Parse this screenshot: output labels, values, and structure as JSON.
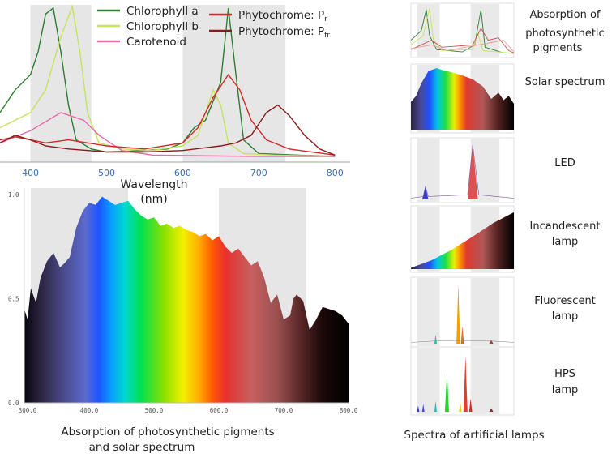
{
  "chart_data": [
    {
      "type": "line",
      "title": "",
      "xlabel": "Wavelength (nm)",
      "xlim": [
        360,
        820
      ],
      "x_ticks": [
        "400",
        "500",
        "600",
        "700",
        "800"
      ],
      "highlight_bands": [
        [
          400,
          480
        ],
        [
          600,
          735
        ]
      ],
      "legend": [
        {
          "name": "Chlorophyll a",
          "color": "#2e7d32"
        },
        {
          "name": "Chlorophyll b",
          "color": "#c6e35c"
        },
        {
          "name": "Carotenoid",
          "color": "#e86aa6"
        },
        {
          "name": "Phytochrome: P",
          "sub": "r",
          "color": "#d62828"
        },
        {
          "name": "Phytochrome: P",
          "sub": "fr",
          "color": "#8b1a1a"
        }
      ],
      "series": [
        {
          "name": "Chlorophyll a",
          "color": "#2e7d32",
          "points": [
            [
              360,
              0.3
            ],
            [
              380,
              0.45
            ],
            [
              400,
              0.55
            ],
            [
              410,
              0.7
            ],
            [
              420,
              0.95
            ],
            [
              430,
              0.99
            ],
            [
              440,
              0.7
            ],
            [
              450,
              0.35
            ],
            [
              460,
              0.12
            ],
            [
              480,
              0.06
            ],
            [
              500,
              0.04
            ],
            [
              550,
              0.05
            ],
            [
              580,
              0.06
            ],
            [
              600,
              0.1
            ],
            [
              615,
              0.2
            ],
            [
              630,
              0.25
            ],
            [
              650,
              0.5
            ],
            [
              660,
              0.99
            ],
            [
              670,
              0.55
            ],
            [
              680,
              0.12
            ],
            [
              700,
              0.03
            ],
            [
              750,
              0.02
            ],
            [
              800,
              0.01
            ]
          ]
        },
        {
          "name": "Chlorophyll b",
          "color": "#c6e35c",
          "points": [
            [
              360,
              0.2
            ],
            [
              380,
              0.25
            ],
            [
              400,
              0.3
            ],
            [
              420,
              0.45
            ],
            [
              440,
              0.8
            ],
            [
              455,
              1.0
            ],
            [
              465,
              0.7
            ],
            [
              475,
              0.3
            ],
            [
              490,
              0.1
            ],
            [
              520,
              0.06
            ],
            [
              560,
              0.05
            ],
            [
              600,
              0.08
            ],
            [
              620,
              0.15
            ],
            [
              640,
              0.45
            ],
            [
              650,
              0.35
            ],
            [
              660,
              0.1
            ],
            [
              680,
              0.03
            ],
            [
              720,
              0.02
            ],
            [
              800,
              0.01
            ]
          ]
        },
        {
          "name": "Carotenoid",
          "color": "#e86aa6",
          "points": [
            [
              360,
              0.1
            ],
            [
              400,
              0.18
            ],
            [
              440,
              0.3
            ],
            [
              470,
              0.25
            ],
            [
              490,
              0.15
            ],
            [
              520,
              0.05
            ],
            [
              560,
              0.02
            ],
            [
              700,
              0.01
            ],
            [
              800,
              0.01
            ]
          ]
        },
        {
          "name": "Phytochrome: Pr",
          "color": "#d62828",
          "points": [
            [
              360,
              0.12
            ],
            [
              380,
              0.14
            ],
            [
              400,
              0.12
            ],
            [
              420,
              0.1
            ],
            [
              450,
              0.12
            ],
            [
              500,
              0.08
            ],
            [
              550,
              0.06
            ],
            [
              600,
              0.1
            ],
            [
              620,
              0.2
            ],
            [
              640,
              0.4
            ],
            [
              660,
              0.55
            ],
            [
              675,
              0.45
            ],
            [
              690,
              0.25
            ],
            [
              710,
              0.12
            ],
            [
              740,
              0.06
            ],
            [
              800,
              0.02
            ]
          ]
        },
        {
          "name": "Phytochrome: Pfr",
          "color": "#8b1a1a",
          "points": [
            [
              360,
              0.1
            ],
            [
              380,
              0.15
            ],
            [
              400,
              0.12
            ],
            [
              420,
              0.08
            ],
            [
              450,
              0.06
            ],
            [
              500,
              0.04
            ],
            [
              550,
              0.04
            ],
            [
              600,
              0.05
            ],
            [
              650,
              0.08
            ],
            [
              670,
              0.1
            ],
            [
              690,
              0.15
            ],
            [
              710,
              0.3
            ],
            [
              725,
              0.35
            ],
            [
              740,
              0.28
            ],
            [
              760,
              0.15
            ],
            [
              780,
              0.06
            ],
            [
              800,
              0.02
            ]
          ]
        }
      ]
    },
    {
      "type": "area",
      "title": "",
      "xlim": [
        300,
        800
      ],
      "ylim": [
        0,
        1.0
      ],
      "x_ticks": [
        "300.0",
        "400.0",
        "500.0",
        "600.0",
        "700.0",
        "800.0"
      ],
      "y_ticks": [
        "1.0",
        "0.5",
        "0.0"
      ],
      "highlight_bands": [
        [
          310,
          460
        ],
        [
          600,
          735
        ]
      ],
      "points": [
        [
          300,
          0.45
        ],
        [
          305,
          0.4
        ],
        [
          310,
          0.55
        ],
        [
          318,
          0.48
        ],
        [
          325,
          0.6
        ],
        [
          335,
          0.68
        ],
        [
          345,
          0.72
        ],
        [
          355,
          0.65
        ],
        [
          362,
          0.67
        ],
        [
          370,
          0.7
        ],
        [
          380,
          0.84
        ],
        [
          390,
          0.92
        ],
        [
          400,
          0.96
        ],
        [
          410,
          0.95
        ],
        [
          420,
          0.99
        ],
        [
          430,
          0.97
        ],
        [
          440,
          0.95
        ],
        [
          450,
          0.96
        ],
        [
          460,
          0.97
        ],
        [
          470,
          0.93
        ],
        [
          480,
          0.9
        ],
        [
          490,
          0.88
        ],
        [
          500,
          0.89
        ],
        [
          510,
          0.85
        ],
        [
          520,
          0.86
        ],
        [
          530,
          0.84
        ],
        [
          540,
          0.85
        ],
        [
          550,
          0.83
        ],
        [
          560,
          0.82
        ],
        [
          570,
          0.8
        ],
        [
          580,
          0.81
        ],
        [
          590,
          0.78
        ],
        [
          600,
          0.8
        ],
        [
          610,
          0.75
        ],
        [
          620,
          0.72
        ],
        [
          630,
          0.74
        ],
        [
          640,
          0.7
        ],
        [
          650,
          0.66
        ],
        [
          660,
          0.68
        ],
        [
          670,
          0.6
        ],
        [
          680,
          0.48
        ],
        [
          690,
          0.52
        ],
        [
          700,
          0.4
        ],
        [
          710,
          0.42
        ],
        [
          715,
          0.5
        ],
        [
          720,
          0.52
        ],
        [
          730,
          0.49
        ],
        [
          740,
          0.35
        ],
        [
          750,
          0.4
        ],
        [
          760,
          0.46
        ],
        [
          770,
          0.45
        ],
        [
          780,
          0.44
        ],
        [
          790,
          0.42
        ],
        [
          800,
          0.38
        ]
      ],
      "caption": "Absorption of photosynthetic pigments and solar spectrum"
    }
  ],
  "side_panels": [
    {
      "label": "Absorption of photosynthetic pigments",
      "kind": "pigments"
    },
    {
      "label": "Solar spectrum",
      "kind": "solar"
    },
    {
      "label": "LED",
      "kind": "led"
    },
    {
      "label": "Incandescent lamp",
      "kind": "incandescent"
    },
    {
      "label": "Fluorescent lamp",
      "kind": "fluorescent"
    },
    {
      "label": "HPS lamp",
      "kind": "hps"
    }
  ],
  "left_caption_1": "Absorption of photosynthetic pigments",
  "left_caption_2": "and solar spectrum",
  "right_caption": "Spectra of artificial lamps",
  "xlabel_1": "Wavelength",
  "xlabel_2": "(nm)"
}
